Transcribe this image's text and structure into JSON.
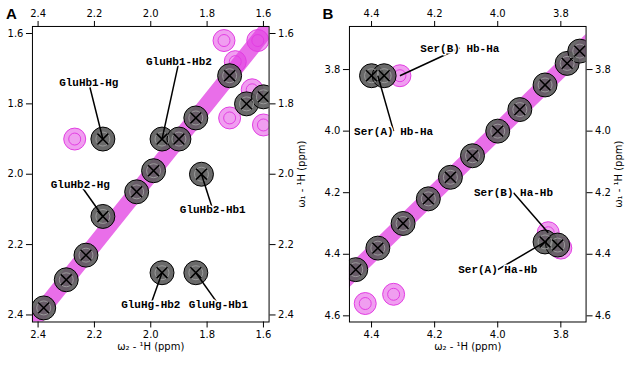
{
  "chart_data": [
    {
      "type": "scatter",
      "title": "A",
      "x_label": "ω₂ - ¹H (ppm)",
      "y_label": "ω₁ - ¹H (ppm)",
      "xlim": [
        2.42,
        1.58
      ],
      "ylim": [
        2.42,
        1.58
      ],
      "xticks": [
        2.4,
        2.2,
        {
          "value": 2.0,
          "label": "2.0"
        },
        1.8,
        1.6
      ],
      "yticks": [
        1.6,
        1.8,
        {
          "value": 2.0,
          "label": "2.0"
        },
        2.2,
        2.4
      ],
      "series": [
        {
          "type": "line",
          "color": "#e23de2",
          "x": [
            2.42,
            1.58
          ],
          "y": [
            2.42,
            1.58
          ]
        },
        {
          "color": "#e23de2",
          "marker": "circle",
          "x": [
            2.27,
            1.62,
            1.7,
            1.74,
            1.64,
            1.72,
            1.6
          ],
          "y": [
            1.9,
            1.62,
            1.68,
            1.62,
            1.76,
            1.84,
            1.86
          ]
        },
        {
          "color": "#000000",
          "marker": "x",
          "x": [
            2.17,
            2.17,
            1.96,
            1.82,
            1.96,
            1.84,
            2.38,
            2.3,
            2.23,
            2.05,
            1.99,
            1.9,
            1.84,
            1.72,
            1.66,
            1.6
          ],
          "y": [
            1.9,
            2.12,
            1.9,
            2.0,
            2.28,
            2.28,
            2.38,
            2.3,
            2.23,
            2.05,
            1.99,
            1.9,
            1.84,
            1.72,
            1.8,
            1.78
          ]
        }
      ],
      "annotations": [
        {
          "text": "GluHb1-Hg",
          "x": 2.22,
          "y": 1.74,
          "point": [
            2.17,
            1.9
          ]
        },
        {
          "text": "GluHb2-Hg",
          "x": 2.25,
          "y": 2.03,
          "point": [
            2.17,
            2.12
          ]
        },
        {
          "text": "GluHb1-Hb2",
          "x": 1.9,
          "y": 1.68,
          "point": [
            1.96,
            1.9
          ]
        },
        {
          "text": "GluHb2-Hb1",
          "x": 1.78,
          "y": 2.1,
          "point": [
            1.82,
            2.0
          ]
        },
        {
          "text": "GluHg-Hb2",
          "x": 2.0,
          "y": 2.37,
          "point": [
            1.96,
            2.28
          ]
        },
        {
          "text": "GluHg-Hb1",
          "x": 1.76,
          "y": 2.37,
          "point": [
            1.84,
            2.28
          ]
        }
      ]
    },
    {
      "type": "scatter",
      "title": "B",
      "x_label": "ω₂ - ¹H (ppm)",
      "y_label": "ω₁ - ¹H (ppm)",
      "xlim": [
        4.47,
        3.72
      ],
      "ylim": [
        4.62,
        3.66
      ],
      "xticks": [
        4.4,
        4.2,
        {
          "value": 4.0,
          "label": "4.0"
        },
        3.8
      ],
      "yticks": [
        3.8,
        {
          "value": 4.0,
          "label": "4.0"
        },
        4.2,
        4.4,
        4.6
      ],
      "series": [
        {
          "type": "line",
          "color": "#e23de2",
          "x": [
            4.62,
            3.66
          ],
          "y": [
            4.62,
            3.66
          ]
        },
        {
          "color": "#e23de2",
          "marker": "circle",
          "x": [
            4.31,
            3.84,
            3.8,
            4.42,
            4.33
          ],
          "y": [
            3.82,
            4.33,
            4.38,
            4.56,
            4.53
          ]
        },
        {
          "color": "#000000",
          "marker": "x",
          "x": [
            4.4,
            4.36,
            3.85,
            3.81,
            4.45,
            4.38,
            4.3,
            4.22,
            4.15,
            4.08,
            4.0,
            3.93,
            3.85,
            3.78,
            3.74
          ],
          "y": [
            3.82,
            3.82,
            4.36,
            4.37,
            4.45,
            4.38,
            4.3,
            4.22,
            4.15,
            4.08,
            4.0,
            3.93,
            3.85,
            3.78,
            3.74
          ]
        }
      ],
      "annotations": [
        {
          "text": "Ser(A) Hb-Ha",
          "x": 4.33,
          "y": 4.0,
          "point": [
            4.38,
            3.82
          ]
        },
        {
          "text": "Ser(B) Hb-Ha",
          "x": 4.12,
          "y": 3.73,
          "point": [
            4.31,
            3.82
          ]
        },
        {
          "text": "Ser(B) Ha-Hb",
          "x": 3.95,
          "y": 4.2,
          "point": [
            3.84,
            4.33
          ]
        },
        {
          "text": "Ser(A) Ha-Hb",
          "x": 4.0,
          "y": 4.45,
          "point": [
            3.85,
            4.36
          ]
        }
      ]
    }
  ]
}
